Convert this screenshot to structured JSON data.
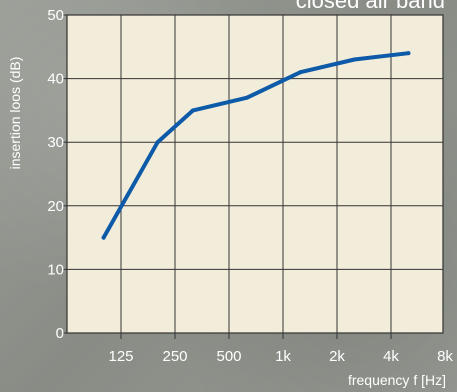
{
  "chart_data": {
    "type": "line",
    "title": "closed air band",
    "xlabel": "frequency f [Hz]",
    "ylabel": "insertion loos (dB)",
    "categories": [
      "125",
      "250",
      "500",
      "1k",
      "2k",
      "4k",
      "8k"
    ],
    "ylim": [
      0,
      50
    ],
    "yticks": [
      0,
      10,
      20,
      30,
      40,
      50
    ],
    "grid": true,
    "colors": {
      "plot_bg": "#f2ecdb",
      "line": "#0d5aa8",
      "grid": "#333333",
      "text": "#ffffff"
    },
    "series": [
      {
        "x": [
          "100",
          "200",
          "315",
          "630",
          "1.25k",
          "2.5k",
          "5k"
        ],
        "values": [
          15,
          30,
          35,
          37,
          41,
          43,
          44
        ]
      }
    ]
  }
}
